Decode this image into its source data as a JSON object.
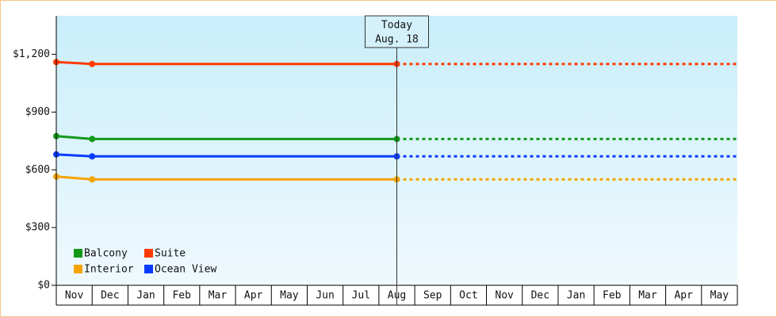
{
  "chart_data": {
    "type": "line",
    "categories": [
      "Nov",
      "Dec",
      "Jan",
      "Feb",
      "Mar",
      "Apr",
      "May",
      "Jun",
      "Jul",
      "Aug",
      "Sep",
      "Oct",
      "Nov",
      "Dec",
      "Jan",
      "Feb",
      "Mar",
      "Apr",
      "May"
    ],
    "series": [
      {
        "name": "Balcony",
        "color": "#12991a",
        "values": [
          775,
          760,
          760,
          760,
          760,
          760,
          760,
          760,
          760,
          760,
          null,
          null,
          null,
          null,
          null,
          null,
          null,
          null,
          null
        ]
      },
      {
        "name": "Suite",
        "color": "#ff3a00",
        "values": [
          1160,
          1150,
          1150,
          1150,
          1150,
          1150,
          1150,
          1150,
          1150,
          1150,
          null,
          null,
          null,
          null,
          null,
          null,
          null,
          null,
          null
        ]
      },
      {
        "name": "Interior",
        "color": "#f5a300",
        "values": [
          565,
          550,
          550,
          550,
          550,
          550,
          550,
          550,
          550,
          550,
          null,
          null,
          null,
          null,
          null,
          null,
          null,
          null,
          null
        ]
      },
      {
        "name": "Ocean View",
        "color": "#0a3cff",
        "values": [
          680,
          670,
          670,
          670,
          670,
          670,
          670,
          670,
          670,
          670,
          null,
          null,
          null,
          null,
          null,
          null,
          null,
          null,
          null
        ]
      }
    ],
    "annotation": {
      "text": [
        "Today",
        "Aug. 18"
      ],
      "x": "Aug"
    },
    "ylim": [
      0,
      1400
    ],
    "yticks": [
      {
        "value": 0,
        "label": "$0"
      },
      {
        "value": 300,
        "label": "$300"
      },
      {
        "value": 600,
        "label": "$600"
      },
      {
        "value": 900,
        "label": "$900"
      },
      {
        "value": 1200,
        "label": "$1,200"
      }
    ],
    "forecast": true,
    "legend": "lower left"
  }
}
